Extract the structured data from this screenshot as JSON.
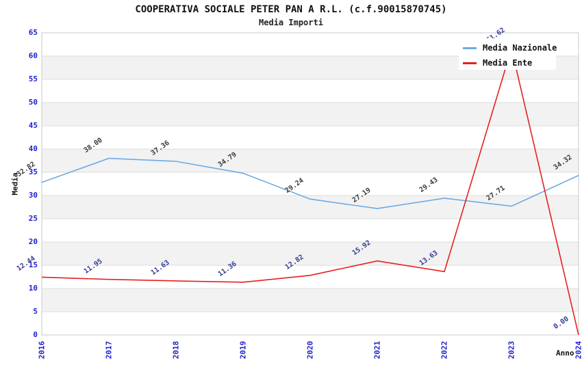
{
  "header": {
    "title": "COOPERATIVA SOCIALE PETER PAN A R.L. (c.f.90015870745)",
    "subtitle": "Media Importi"
  },
  "chart_data": {
    "type": "line",
    "x": [
      "2016",
      "2017",
      "2018",
      "2019",
      "2020",
      "2021",
      "2022",
      "2023",
      "2024"
    ],
    "xlabel": "Anno",
    "ylabel": "Media",
    "ylim": [
      0,
      65
    ],
    "ytick_step": 5,
    "y_ticks": [
      "0",
      "5",
      "10",
      "15",
      "20",
      "25",
      "30",
      "35",
      "40",
      "45",
      "50",
      "55",
      "60",
      "65"
    ],
    "grid": true,
    "banded_background": true,
    "legend_position": "top-right",
    "series": [
      {
        "name": "Media Nazionale",
        "color": "#6CAAE4",
        "label_color": "#3a3a3a",
        "values": [
          32.82,
          38.0,
          37.36,
          34.79,
          29.24,
          27.19,
          29.43,
          27.71,
          34.32
        ],
        "labels": [
          "32.82",
          "38.00",
          "37.36",
          "34.79",
          "29.24",
          "27.19",
          "29.43",
          "27.71",
          "34.32"
        ]
      },
      {
        "name": "Media Ente",
        "color": "#E81E1E",
        "label_color": "#333a99",
        "values": [
          12.44,
          11.95,
          11.63,
          11.36,
          12.82,
          15.92,
          13.63,
          61.62,
          0.0
        ],
        "labels": [
          "12.44",
          "11.95",
          "11.63",
          "11.36",
          "12.82",
          "15.92",
          "13.63",
          "61.62",
          "0.00"
        ]
      }
    ]
  },
  "colors": {
    "background": "#ffffff",
    "band": "#f2f2f2",
    "gridline": "#dcdcdc",
    "plot_border": "#c8c8c8",
    "tick_label": "#2020cc",
    "text": "#111111"
  }
}
